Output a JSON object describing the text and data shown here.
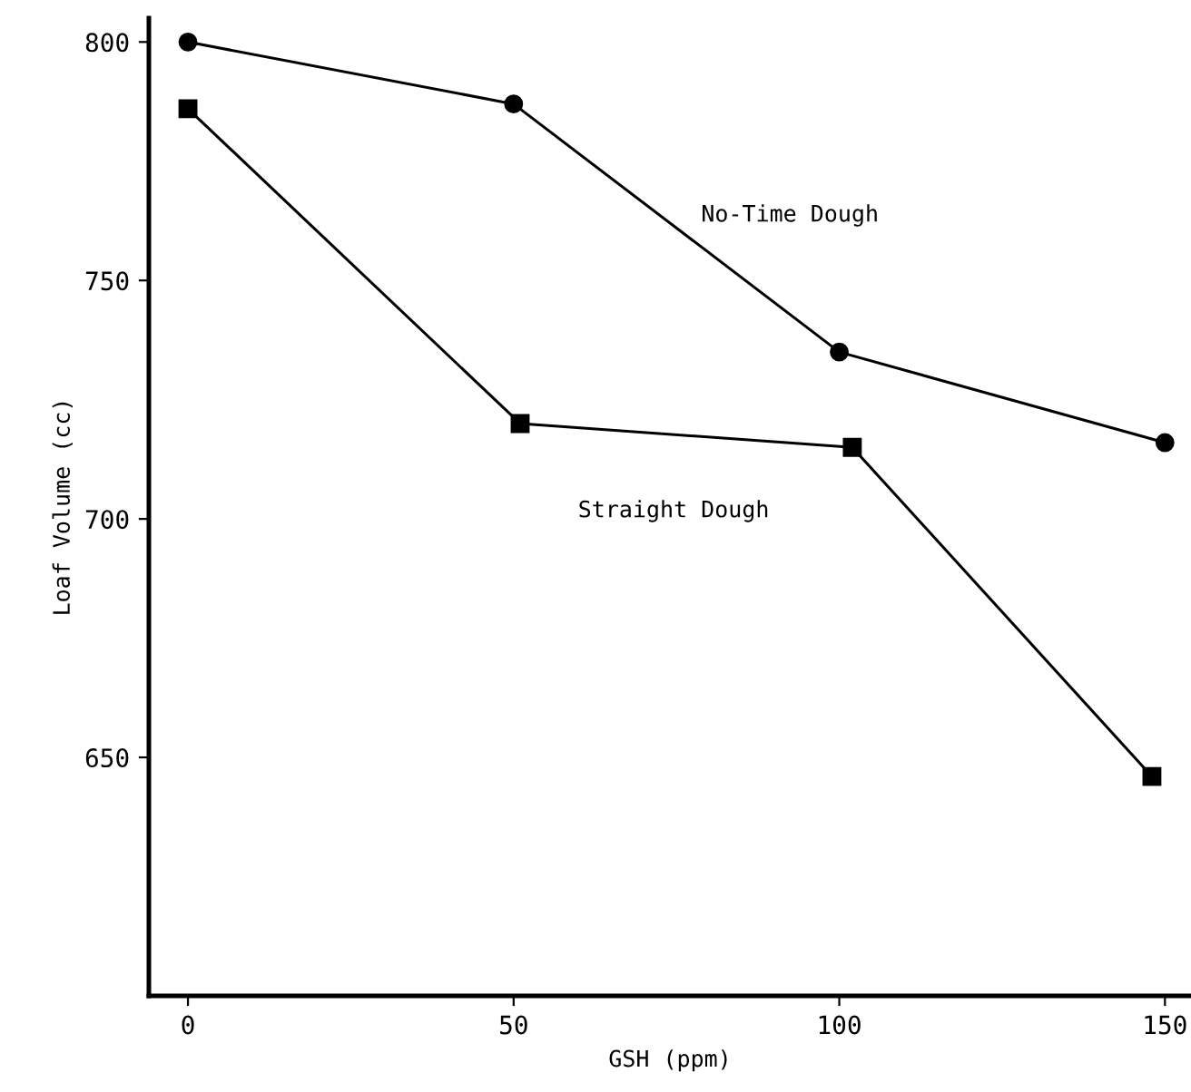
{
  "chart_data": {
    "type": "line",
    "xlabel": "GSH (ppm)",
    "ylabel": "Loaf Volume (cc)",
    "xlim": [
      -6,
      154
    ],
    "ylim": [
      600,
      805
    ],
    "xticks": [
      0,
      50,
      100,
      150
    ],
    "yticks": [
      650,
      700,
      750,
      800
    ],
    "grid": false,
    "legend": false,
    "series": [
      {
        "name": "No-Time Dough",
        "color": "#000000",
        "marker": "circle",
        "x": [
          0,
          50,
          100,
          150
        ],
        "values": [
          800,
          787,
          735,
          716
        ]
      },
      {
        "name": "Straight Dough",
        "color": "#000000",
        "marker": "square",
        "x": [
          0,
          51,
          102,
          148
        ],
        "values": [
          786,
          720,
          715,
          646
        ]
      }
    ]
  }
}
